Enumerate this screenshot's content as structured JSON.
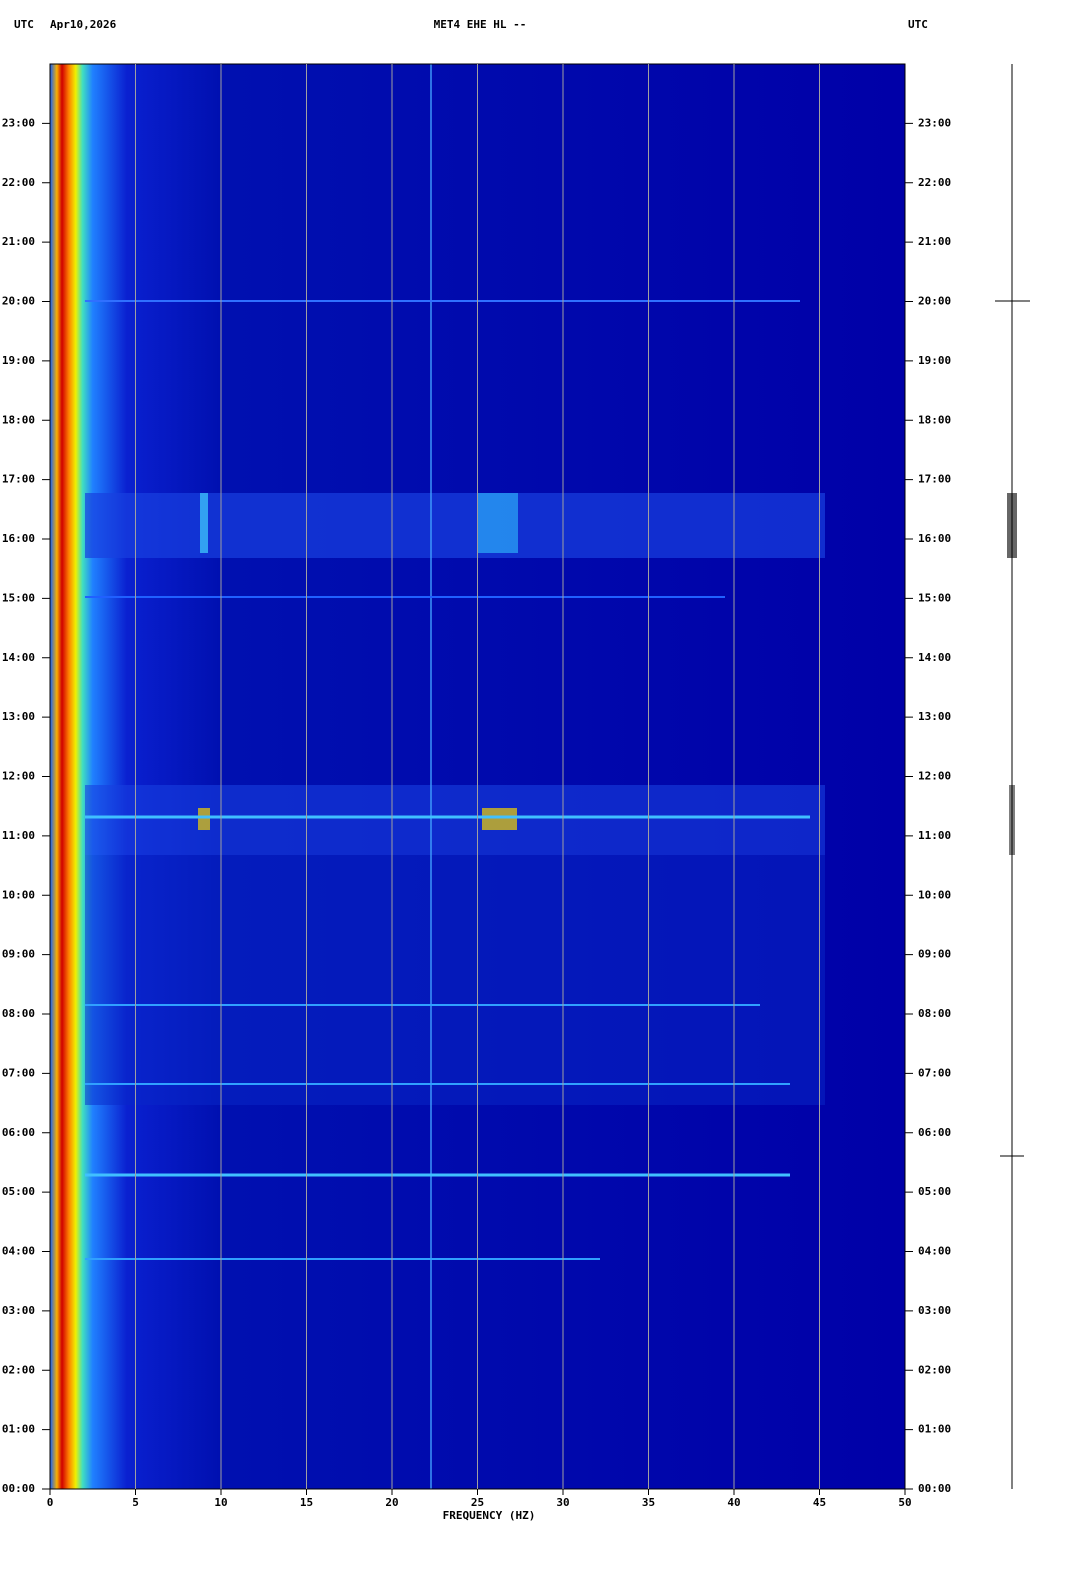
{
  "chart_data": {
    "type": "spectrogram",
    "header_left_zone": "UTC",
    "date": "Apr10,2026",
    "title": "MET4 EHE HL --",
    "header_right_zone": "UTC",
    "xlabel": "FREQUENCY (HZ)",
    "xlim": [
      0,
      50
    ],
    "xticks": [
      0,
      5,
      10,
      15,
      20,
      25,
      30,
      35,
      40,
      45,
      50
    ],
    "ylim": [
      0,
      24
    ],
    "yticks": [
      {
        "value": 0,
        "label": "00:00"
      },
      {
        "value": 1,
        "label": "01:00"
      },
      {
        "value": 2,
        "label": "02:00"
      },
      {
        "value": 3,
        "label": "03:00"
      },
      {
        "value": 4,
        "label": "04:00"
      },
      {
        "value": 5,
        "label": "05:00"
      },
      {
        "value": 6,
        "label": "06:00"
      },
      {
        "value": 7,
        "label": "07:00"
      },
      {
        "value": 8,
        "label": "08:00"
      },
      {
        "value": 9,
        "label": "09:00"
      },
      {
        "value": 10,
        "label": "10:00"
      },
      {
        "value": 11,
        "label": "11:00"
      },
      {
        "value": 12,
        "label": "12:00"
      },
      {
        "value": 13,
        "label": "13:00"
      },
      {
        "value": 14,
        "label": "14:00"
      },
      {
        "value": 15,
        "label": "15:00"
      },
      {
        "value": 16,
        "label": "16:00"
      },
      {
        "value": 17,
        "label": "17:00"
      },
      {
        "value": 18,
        "label": "18:00"
      },
      {
        "value": 19,
        "label": "19:00"
      },
      {
        "value": 20,
        "label": "20:00"
      },
      {
        "value": 21,
        "label": "21:00"
      },
      {
        "value": 22,
        "label": "22:00"
      },
      {
        "value": 23,
        "label": "23:00"
      }
    ],
    "grid": true,
    "grid_color": "#a0a0a0"
  }
}
